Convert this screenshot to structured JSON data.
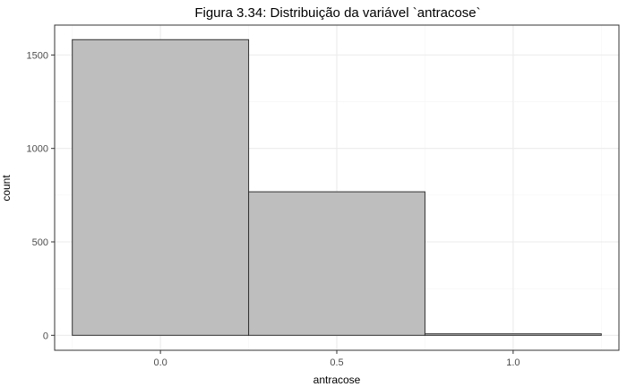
{
  "chart_data": {
    "type": "bar",
    "title": "Figura 3.34: Distribuição da variável `antracose`",
    "xlabel": "antracose",
    "ylabel": "count",
    "bins": [
      {
        "x_start": -0.25,
        "x_end": 0.25,
        "count": 1582
      },
      {
        "x_start": 0.25,
        "x_end": 0.75,
        "count": 768
      },
      {
        "x_start": 0.75,
        "x_end": 1.25,
        "count": 8
      }
    ],
    "xlim": [
      -0.3,
      1.3
    ],
    "ylim": [
      -80,
      1660
    ],
    "x_ticks": [
      {
        "value": 0.0,
        "label": "0.0"
      },
      {
        "value": 0.5,
        "label": "0.5"
      },
      {
        "value": 1.0,
        "label": "1.0"
      }
    ],
    "y_ticks": [
      {
        "value": 0,
        "label": "0"
      },
      {
        "value": 500,
        "label": "500"
      },
      {
        "value": 1000,
        "label": "1000"
      },
      {
        "value": 1500,
        "label": "1500"
      }
    ],
    "grid": true,
    "legend": "none",
    "colors": {
      "bar_fill": "#bebebe",
      "bar_stroke": "#333333",
      "grid_major": "#ebebeb",
      "grid_minor": "#f5f5f5",
      "panel_border": "#333333"
    }
  }
}
